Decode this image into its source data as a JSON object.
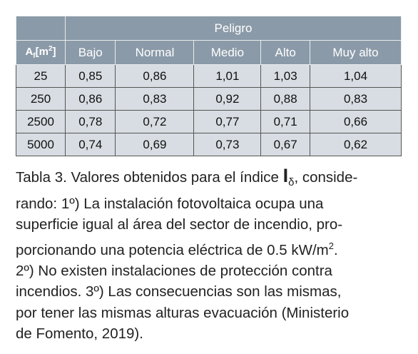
{
  "table": {
    "group_header": "Peligro",
    "corner": {
      "symbol": "A",
      "subscript": "f",
      "unit_open": "[m",
      "unit_sup": "2",
      "unit_close": "]"
    },
    "columns": [
      "Bajo",
      "Normal",
      "Medio",
      "Alto",
      "Muy alto"
    ],
    "rows": [
      [
        "25",
        "0,85",
        "0,86",
        "1,01",
        "1,03",
        "1,04"
      ],
      [
        "250",
        "0,86",
        "0,83",
        "0,92",
        "0,88",
        "0,83"
      ],
      [
        "2500",
        "0,78",
        "0,72",
        "0,77",
        "0,71",
        "0,66"
      ],
      [
        "5000",
        "0,74",
        "0,69",
        "0,73",
        "0,67",
        "0,62"
      ]
    ]
  },
  "caption": {
    "line0": {
      "before": "Tabla 3. Valores obtenidos para el índice ",
      "symbol": "I",
      "subscript": "δ",
      "after": ", conside-"
    },
    "line1": "rando: 1º) La instalación fotovoltaica ocupa una",
    "line2": "superficie igual al área del sector de incendio, pro-",
    "line3": {
      "before": "porcionando una potencia eléctrica de 0.5 kW/m",
      "sup": "2",
      "after": "."
    },
    "line4": "2º) No existen instalaciones de protección contra",
    "line5": "incendios. 3º) Las consecuencias son las mismas,",
    "line6": "por tener las mismas alturas evacuación (Ministerio",
    "line7": "de Fomento, 2019)."
  }
}
